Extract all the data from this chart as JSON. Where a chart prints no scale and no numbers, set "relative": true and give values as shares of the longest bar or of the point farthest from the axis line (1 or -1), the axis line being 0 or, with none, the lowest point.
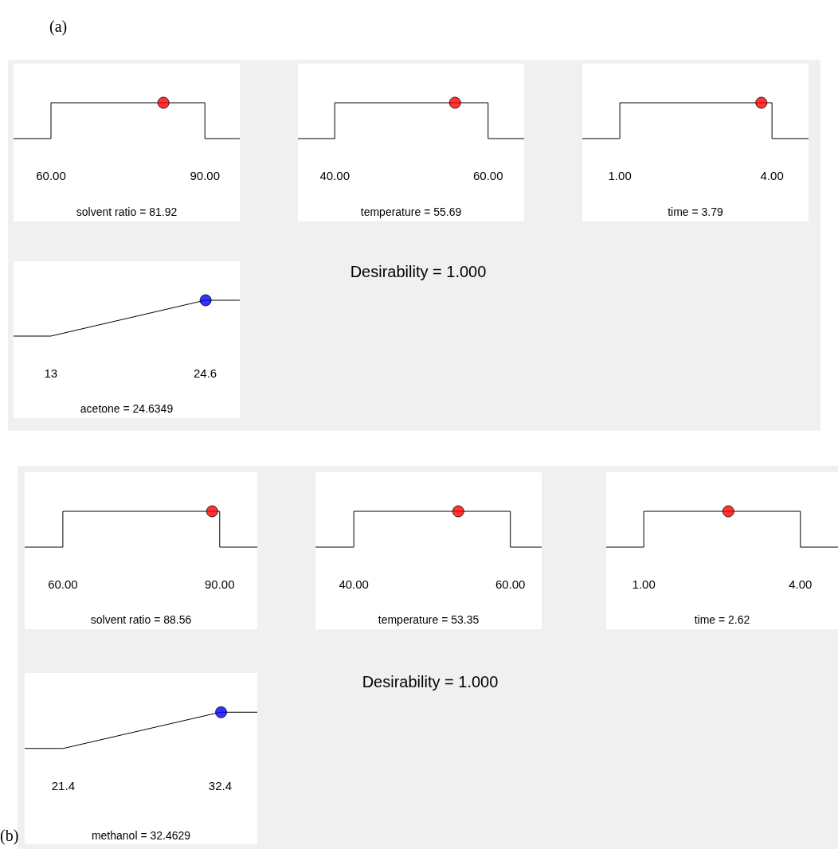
{
  "chart_data": [
    {
      "type": "line",
      "relative": true,
      "xlabel": "solvent ratio = 81.92",
      "annotations": [
        "(a)"
      ],
      "xlim": [
        52.7,
        96.8
      ],
      "xticks": [
        {
          "value": 60,
          "label": "60.00"
        },
        {
          "value": 90,
          "label": "90.00"
        }
      ],
      "tick_labels": "x",
      "grid": false,
      "series": [
        {
          "color": "#000000",
          "marker": "none",
          "x": [
            52.7,
            60,
            60,
            90,
            90,
            96.8
          ],
          "values": [
            0,
            0,
            1,
            1,
            0,
            0
          ]
        },
        {
          "type": "scatter",
          "color": "#ff0000",
          "marker": "circle",
          "x": [
            81.92
          ],
          "values": [
            1
          ]
        }
      ]
    },
    {
      "type": "line",
      "relative": true,
      "xlabel": "temperature = 55.69",
      "xlim": [
        35.2,
        64.7
      ],
      "xticks": [
        {
          "value": 40,
          "label": "40.00"
        },
        {
          "value": 60,
          "label": "60.00"
        }
      ],
      "tick_labels": "x",
      "grid": false,
      "series": [
        {
          "color": "#000000",
          "marker": "none",
          "x": [
            35.2,
            40,
            40,
            60,
            60,
            64.7
          ],
          "values": [
            0,
            0,
            1,
            1,
            0,
            0
          ]
        },
        {
          "type": "scatter",
          "color": "#ff0000",
          "marker": "circle",
          "x": [
            55.69
          ],
          "values": [
            1
          ]
        }
      ]
    },
    {
      "type": "line",
      "relative": true,
      "xlabel": "time = 3.79",
      "xlim": [
        0.26,
        4.72
      ],
      "xticks": [
        {
          "value": 1,
          "label": "1.00"
        },
        {
          "value": 4,
          "label": "4.00"
        }
      ],
      "tick_labels": "x",
      "grid": false,
      "series": [
        {
          "color": "#000000",
          "marker": "none",
          "x": [
            0.26,
            1,
            1,
            4,
            4,
            4.72
          ],
          "values": [
            0,
            0,
            1,
            1,
            0,
            0
          ]
        },
        {
          "type": "scatter",
          "color": "#ff0000",
          "marker": "circle",
          "x": [
            3.79
          ],
          "values": [
            1
          ]
        }
      ]
    },
    {
      "type": "line",
      "relative": true,
      "xlabel": "acetone = 24.6349",
      "annotations": [
        "Desirability = 1.000"
      ],
      "xlim": [
        10.2,
        27.2
      ],
      "xticks": [
        13,
        24.6
      ],
      "tick_labels": "x",
      "grid": false,
      "series": [
        {
          "color": "#000000",
          "marker": "none",
          "x": [
            10.2,
            13,
            24.6,
            27.2
          ],
          "values": [
            0,
            0,
            1,
            1
          ]
        },
        {
          "type": "scatter",
          "color": "#0000ff",
          "marker": "circle",
          "x": [
            24.6349
          ],
          "values": [
            1
          ]
        }
      ]
    },
    {
      "type": "line",
      "relative": true,
      "xlabel": "solvent ratio = 88.56",
      "annotations": [
        "(b)"
      ],
      "xlim": [
        52.7,
        97.2
      ],
      "xticks": [
        {
          "value": 60,
          "label": "60.00"
        },
        {
          "value": 90,
          "label": "90.00"
        }
      ],
      "tick_labels": "x",
      "grid": false,
      "series": [
        {
          "color": "#000000",
          "marker": "none",
          "x": [
            52.7,
            60,
            60,
            90,
            90,
            97.2
          ],
          "values": [
            0,
            0,
            1,
            1,
            0,
            0
          ]
        },
        {
          "type": "scatter",
          "color": "#ff0000",
          "marker": "circle",
          "x": [
            88.56
          ],
          "values": [
            1
          ]
        }
      ]
    },
    {
      "type": "line",
      "relative": true,
      "xlabel": "temperature = 53.35",
      "xlim": [
        35.1,
        64.0
      ],
      "xticks": [
        {
          "value": 40,
          "label": "40.00"
        },
        {
          "value": 60,
          "label": "60.00"
        }
      ],
      "tick_labels": "x",
      "grid": false,
      "series": [
        {
          "color": "#000000",
          "marker": "none",
          "x": [
            35.1,
            40,
            40,
            60,
            60,
            64.0
          ],
          "values": [
            0,
            0,
            1,
            1,
            0,
            0
          ]
        },
        {
          "type": "scatter",
          "color": "#ff0000",
          "marker": "circle",
          "x": [
            53.35
          ],
          "values": [
            1
          ]
        }
      ]
    },
    {
      "type": "line",
      "relative": true,
      "xlabel": "time = 2.62",
      "xlim": [
        0.28,
        4.72
      ],
      "xticks": [
        {
          "value": 1,
          "label": "1.00"
        },
        {
          "value": 4,
          "label": "4.00"
        }
      ],
      "tick_labels": "x",
      "grid": false,
      "series": [
        {
          "color": "#000000",
          "marker": "none",
          "x": [
            0.28,
            1,
            1,
            4,
            4,
            4.72
          ],
          "values": [
            0,
            0,
            1,
            1,
            0,
            0
          ]
        },
        {
          "type": "scatter",
          "color": "#ff0000",
          "marker": "circle",
          "x": [
            2.62
          ],
          "values": [
            1
          ]
        }
      ]
    },
    {
      "type": "line",
      "relative": true,
      "xlabel": "methanol = 32.4629",
      "annotations": [
        "Desirability = 1.000"
      ],
      "xlim": [
        18.7,
        35.0
      ],
      "xticks": [
        21.4,
        32.4
      ],
      "tick_labels": "x",
      "grid": false,
      "series": [
        {
          "color": "#000000",
          "marker": "none",
          "x": [
            18.7,
            21.4,
            32.4,
            35.0
          ],
          "values": [
            0,
            0,
            1,
            1
          ]
        },
        {
          "type": "scatter",
          "color": "#0000ff",
          "marker": "circle",
          "x": [
            32.4629
          ],
          "values": [
            1
          ]
        }
      ]
    }
  ]
}
